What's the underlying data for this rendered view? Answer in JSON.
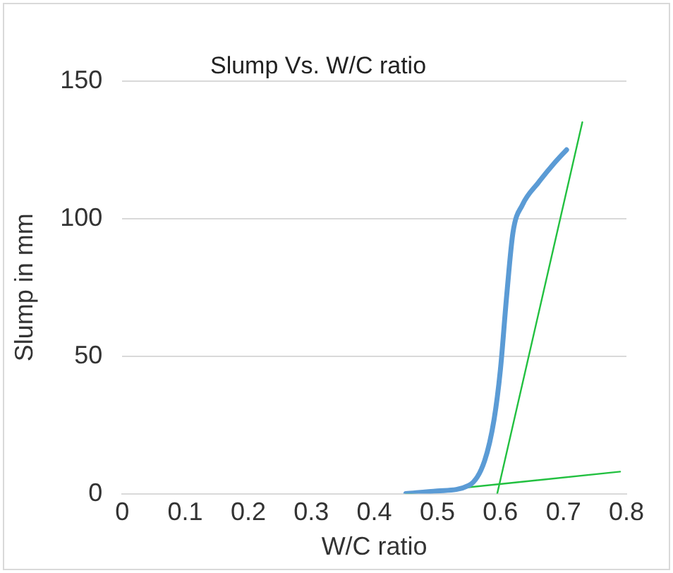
{
  "chart_data": {
    "type": "line",
    "title": "Slump Vs. W/C ratio",
    "xlabel": "W/C ratio",
    "ylabel": "Slump in mm",
    "xlim": [
      0,
      0.8
    ],
    "xticks": [
      0,
      0.1,
      0.2,
      0.3,
      0.4,
      0.5,
      0.6,
      0.7,
      0.8
    ],
    "ylim": [
      0,
      150
    ],
    "yticks": [
      0,
      50,
      100,
      150
    ],
    "grid": "y",
    "legend": false,
    "marker": "none",
    "series": [
      {
        "color": "#5b9bd5",
        "x": [
          0.45,
          0.5,
          0.55,
          0.575,
          0.59,
          0.6,
          0.61,
          0.62,
          0.635,
          0.66,
          0.685,
          0.705
        ],
        "values": [
          0,
          1,
          3,
          12,
          27,
          45,
          72,
          95,
          105,
          113,
          120,
          125
        ]
      },
      {
        "color": "#22c040",
        "x": [
          0.595,
          0.73
        ],
        "values": [
          0,
          135
        ]
      },
      {
        "color": "#22c040",
        "x": [
          0.45,
          0.79
        ],
        "values": [
          0,
          8
        ]
      }
    ]
  }
}
